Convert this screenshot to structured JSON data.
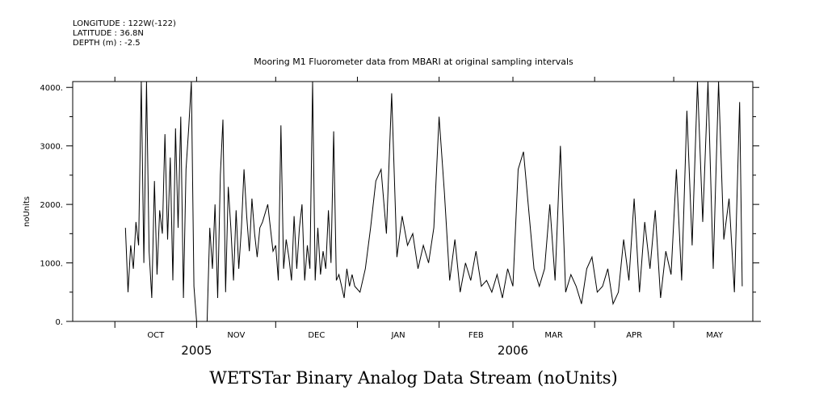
{
  "header": {
    "longitude": "LONGITUDE : 122W(-122)",
    "latitude": "LATITUDE : 36.8N",
    "depth": "DEPTH (m) : -2.5"
  },
  "caption": "WETSTar Binary Analog Data Stream (noUnits)",
  "chart_data": {
    "type": "line",
    "title": "Mooring M1 Fluorometer data from MBARI  at original sampling intervals",
    "ylabel": "noUnits",
    "xlabel": "",
    "ylim": [
      0,
      4100
    ],
    "xlim": [
      "2005-09-15",
      "2006-05-31"
    ],
    "y_ticks": [
      0,
      1000,
      2000,
      3000,
      4000
    ],
    "y_tick_labels": [
      "0.",
      "1000.",
      "2000.",
      "3000.",
      "4000."
    ],
    "month_labels": [
      "OCT",
      "NOV",
      "DEC",
      "JAN",
      "FEB",
      "MAR",
      "APR",
      "MAY"
    ],
    "year_labels": [
      "2005",
      "2006"
    ],
    "grid": false,
    "series": [
      {
        "x": [
          "2005-10-05",
          "2005-10-06",
          "2005-10-07",
          "2005-10-08",
          "2005-10-09",
          "2005-10-10",
          "2005-10-11",
          "2005-10-12",
          "2005-10-13",
          "2005-10-14",
          "2005-10-15",
          "2005-10-16",
          "2005-10-17",
          "2005-10-18",
          "2005-10-19",
          "2005-10-20",
          "2005-10-21",
          "2005-10-22",
          "2005-10-23",
          "2005-10-24",
          "2005-10-25",
          "2005-10-26",
          "2005-10-27",
          "2005-10-28",
          "2005-10-29",
          "2005-10-30",
          "2005-10-31",
          "2005-11-01",
          "2005-11-03",
          "2005-11-05",
          "2005-11-06",
          "2005-11-07",
          "2005-11-08",
          "2005-11-09",
          "2005-11-10",
          "2005-11-11",
          "2005-11-12",
          "2005-11-13",
          "2005-11-14",
          "2005-11-15",
          "2005-11-16",
          "2005-11-17",
          "2005-11-18",
          "2005-11-19",
          "2005-11-20",
          "2005-11-21",
          "2005-11-22",
          "2005-11-23",
          "2005-11-24",
          "2005-11-25",
          "2005-11-26",
          "2005-11-28",
          "2005-11-30",
          "2005-12-01",
          "2005-12-02",
          "2005-12-03",
          "2005-12-04",
          "2005-12-05",
          "2005-12-06",
          "2005-12-07",
          "2005-12-08",
          "2005-12-09",
          "2005-12-10",
          "2005-12-11",
          "2005-12-12",
          "2005-12-13",
          "2005-12-14",
          "2005-12-15",
          "2005-12-16",
          "2005-12-17",
          "2005-12-18",
          "2005-12-19",
          "2005-12-20",
          "2005-12-21",
          "2005-12-22",
          "2005-12-23",
          "2005-12-24",
          "2005-12-25",
          "2005-12-26",
          "2005-12-27",
          "2005-12-28",
          "2005-12-29",
          "2005-12-30",
          "2005-12-31",
          "2006-01-02",
          "2006-01-04",
          "2006-01-06",
          "2006-01-08",
          "2006-01-10",
          "2006-01-12",
          "2006-01-14",
          "2006-01-16",
          "2006-01-18",
          "2006-01-20",
          "2006-01-22",
          "2006-01-24",
          "2006-01-26",
          "2006-01-28",
          "2006-01-30",
          "2006-02-01",
          "2006-02-03",
          "2006-02-05",
          "2006-02-07",
          "2006-02-09",
          "2006-02-11",
          "2006-02-13",
          "2006-02-15",
          "2006-02-17",
          "2006-02-19",
          "2006-02-21",
          "2006-02-23",
          "2006-02-25",
          "2006-02-27",
          "2006-03-01",
          "2006-03-03",
          "2006-03-05",
          "2006-03-07",
          "2006-03-09",
          "2006-03-11",
          "2006-03-13",
          "2006-03-15",
          "2006-03-17",
          "2006-03-19",
          "2006-03-21",
          "2006-03-23",
          "2006-03-25",
          "2006-03-27",
          "2006-03-29",
          "2006-03-31",
          "2006-04-02",
          "2006-04-04",
          "2006-04-06",
          "2006-04-08",
          "2006-04-10",
          "2006-04-12",
          "2006-04-14",
          "2006-04-16",
          "2006-04-18",
          "2006-04-20",
          "2006-04-22",
          "2006-04-24",
          "2006-04-26",
          "2006-04-28",
          "2006-04-30",
          "2006-05-02",
          "2006-05-04",
          "2006-05-06",
          "2006-05-08",
          "2006-05-10",
          "2006-05-12",
          "2006-05-14",
          "2006-05-16",
          "2006-05-18",
          "2006-05-20",
          "2006-05-22",
          "2006-05-24",
          "2006-05-26",
          "2006-05-27"
        ],
        "y": [
          1600,
          500,
          1300,
          900,
          1700,
          1300,
          4100,
          1000,
          4100,
          1200,
          400,
          2400,
          800,
          1900,
          1500,
          3200,
          1400,
          2800,
          700,
          3300,
          1600,
          3500,
          400,
          2600,
          3300,
          4100,
          600,
          0,
          0,
          0,
          1600,
          900,
          2000,
          400,
          2500,
          3450,
          500,
          2300,
          1600,
          700,
          1900,
          900,
          1600,
          2600,
          1800,
          1200,
          2100,
          1500,
          1100,
          1600,
          1700,
          2000,
          1200,
          1300,
          700,
          3350,
          900,
          1400,
          1100,
          700,
          1800,
          900,
          1600,
          2000,
          700,
          1300,
          900,
          4100,
          700,
          1600,
          800,
          1200,
          900,
          1900,
          1000,
          3250,
          700,
          800,
          600,
          400,
          900,
          600,
          800,
          600,
          500,
          900,
          1600,
          2400,
          2600,
          1500,
          3900,
          1100,
          1800,
          1300,
          1500,
          900,
          1300,
          1000,
          1600,
          3500,
          2200,
          700,
          1400,
          500,
          1000,
          700,
          1200,
          600,
          700,
          500,
          800,
          400,
          900,
          600,
          2600,
          2900,
          1900,
          900,
          600,
          900,
          2000,
          700,
          3000,
          500,
          800,
          600,
          300,
          900,
          1100,
          500,
          600,
          900,
          300,
          500,
          1400,
          700,
          2100,
          500,
          1700,
          900,
          1900,
          400,
          1200,
          800,
          2600,
          700,
          3600,
          1300,
          4100,
          1700,
          4100,
          900,
          4100,
          1400,
          2100,
          500,
          3750,
          600
        ]
      }
    ]
  }
}
